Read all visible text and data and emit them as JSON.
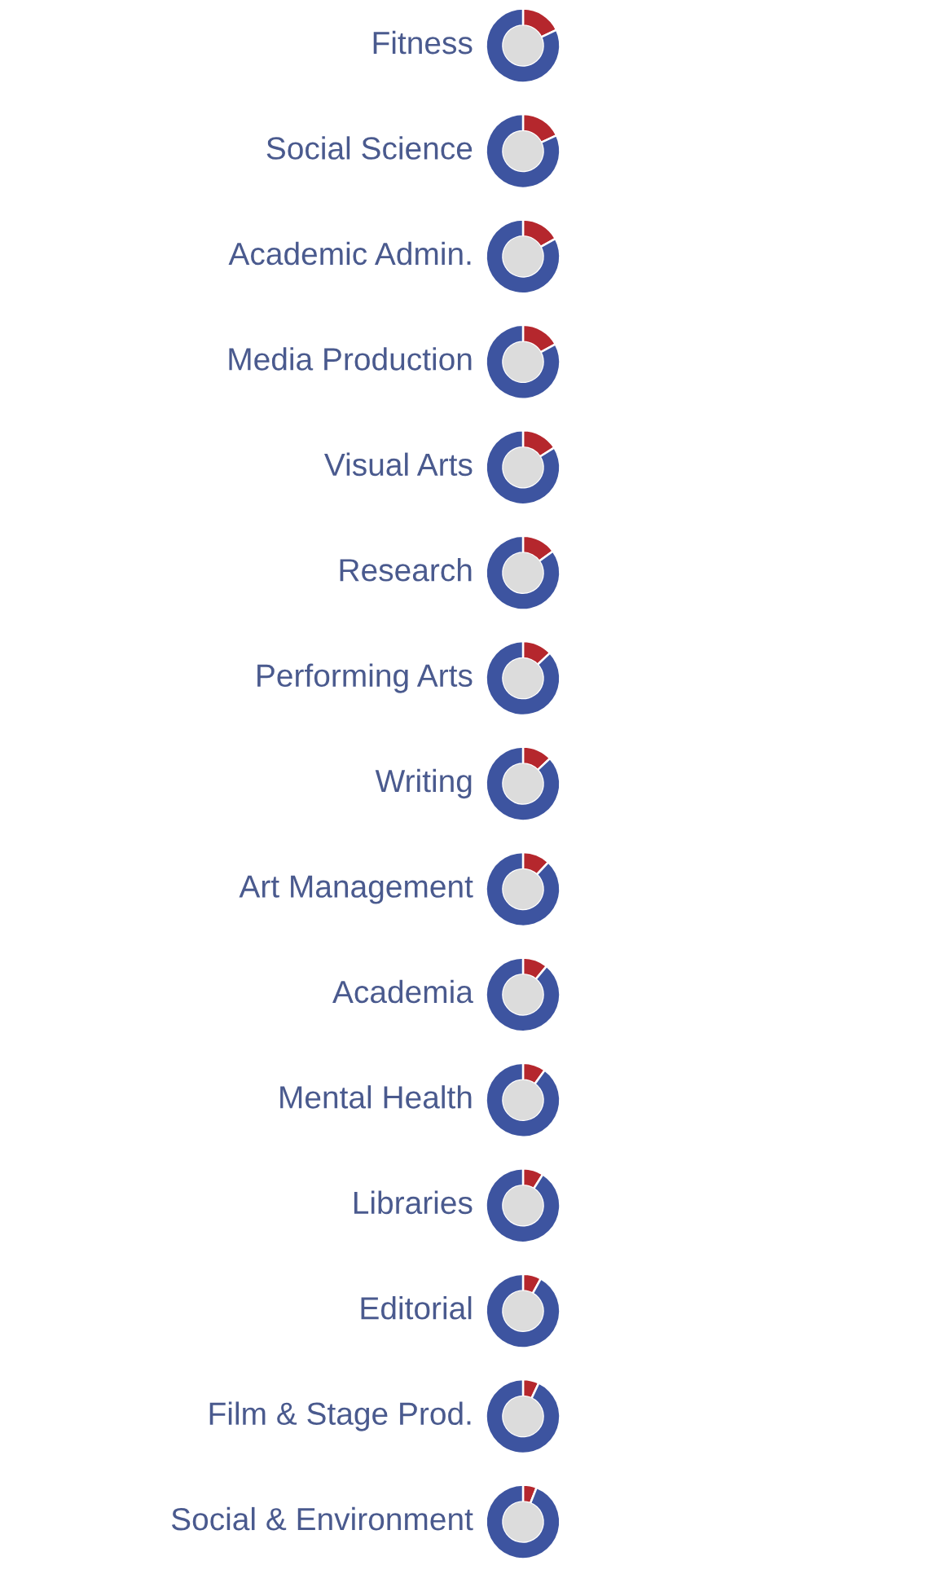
{
  "chart_data": [
    {
      "type": "donut",
      "title": "Fitness",
      "categories": [
        null,
        null
      ],
      "values": [
        18,
        82
      ],
      "colors": [
        "#b5272d",
        "#3d54a0"
      ]
    },
    {
      "type": "donut",
      "title": "Social Science",
      "categories": [
        null,
        null
      ],
      "values": [
        18,
        82
      ],
      "colors": [
        "#b5272d",
        "#3d54a0"
      ]
    },
    {
      "type": "donut",
      "title": "Academic Admin.",
      "categories": [
        null,
        null
      ],
      "values": [
        17,
        83
      ],
      "colors": [
        "#b5272d",
        "#3d54a0"
      ]
    },
    {
      "type": "donut",
      "title": "Media Production",
      "categories": [
        null,
        null
      ],
      "values": [
        17,
        83
      ],
      "colors": [
        "#b5272d",
        "#3d54a0"
      ]
    },
    {
      "type": "donut",
      "title": "Visual Arts",
      "categories": [
        null,
        null
      ],
      "values": [
        16,
        84
      ],
      "colors": [
        "#b5272d",
        "#3d54a0"
      ]
    },
    {
      "type": "donut",
      "title": "Research",
      "categories": [
        null,
        null
      ],
      "values": [
        15,
        85
      ],
      "colors": [
        "#b5272d",
        "#3d54a0"
      ]
    },
    {
      "type": "donut",
      "title": "Performing Arts",
      "categories": [
        null,
        null
      ],
      "values": [
        13,
        87
      ],
      "colors": [
        "#b5272d",
        "#3d54a0"
      ]
    },
    {
      "type": "donut",
      "title": "Writing",
      "categories": [
        null,
        null
      ],
      "values": [
        13,
        87
      ],
      "colors": [
        "#b5272d",
        "#3d54a0"
      ]
    },
    {
      "type": "donut",
      "title": "Art Management",
      "categories": [
        null,
        null
      ],
      "values": [
        12,
        88
      ],
      "colors": [
        "#b5272d",
        "#3d54a0"
      ]
    },
    {
      "type": "donut",
      "title": "Academia",
      "categories": [
        null,
        null
      ],
      "values": [
        11,
        89
      ],
      "colors": [
        "#b5272d",
        "#3d54a0"
      ]
    },
    {
      "type": "donut",
      "title": "Mental Health",
      "categories": [
        null,
        null
      ],
      "values": [
        10,
        90
      ],
      "colors": [
        "#b5272d",
        "#3d54a0"
      ]
    },
    {
      "type": "donut",
      "title": "Libraries",
      "categories": [
        null,
        null
      ],
      "values": [
        9,
        91
      ],
      "colors": [
        "#b5272d",
        "#3d54a0"
      ]
    },
    {
      "type": "donut",
      "title": "Editorial",
      "categories": [
        null,
        null
      ],
      "values": [
        8,
        92
      ],
      "colors": [
        "#b5272d",
        "#3d54a0"
      ]
    },
    {
      "type": "donut",
      "title": "Film & Stage Prod.",
      "categories": [
        null,
        null
      ],
      "values": [
        7,
        93
      ],
      "colors": [
        "#b5272d",
        "#3d54a0"
      ]
    },
    {
      "type": "donut",
      "title": "Social & Environment",
      "categories": [
        null,
        null
      ],
      "values": [
        6,
        94
      ],
      "colors": [
        "#b5272d",
        "#3d54a0"
      ]
    }
  ]
}
